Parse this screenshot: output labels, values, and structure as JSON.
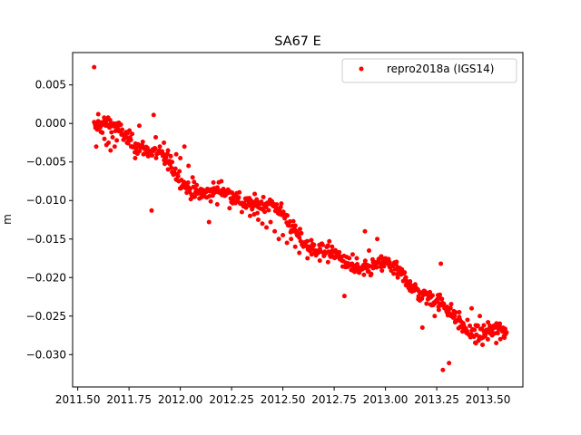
{
  "chart_data": {
    "type": "scatter",
    "title": "SA67 E",
    "xlabel": "",
    "ylabel": "m",
    "xlim": [
      2011.475,
      2013.67
    ],
    "ylim": [
      -0.0342,
      0.0092
    ],
    "xticks": [
      2011.5,
      2011.75,
      2012.0,
      2012.25,
      2012.5,
      2012.75,
      2013.0,
      2013.25,
      2013.5
    ],
    "xtick_labels": [
      "2011.50",
      "2011.75",
      "2012.00",
      "2012.25",
      "2012.50",
      "2012.75",
      "2013.00",
      "2013.25",
      "2013.50"
    ],
    "yticks": [
      0.005,
      0.0,
      -0.005,
      -0.01,
      -0.015,
      -0.02,
      -0.025,
      -0.03
    ],
    "ytick_labels": [
      "0.005",
      "0.000",
      "−0.005",
      "−0.010",
      "−0.015",
      "−0.020",
      "−0.025",
      "−0.030"
    ],
    "grid": false,
    "legend": {
      "position": "upper-right",
      "entries": [
        "repro2018a (IGS14)"
      ]
    },
    "series": [
      {
        "name": "repro2018a (IGS14)",
        "color": "#ff0000",
        "points": [
          [
            2011.58,
            0.0073
          ],
          [
            2011.585,
            -0.0002
          ],
          [
            2011.59,
            -0.003
          ],
          [
            2011.595,
            -0.0008
          ],
          [
            2011.6,
            0.0012
          ],
          [
            2011.61,
            -0.0005
          ],
          [
            2011.62,
            -0.0012
          ],
          [
            2011.63,
            -0.002
          ],
          [
            2011.64,
            -0.0028
          ],
          [
            2011.65,
            -0.0025
          ],
          [
            2011.66,
            -0.0035
          ],
          [
            2011.67,
            -0.0018
          ],
          [
            2011.68,
            -0.003
          ],
          [
            2011.69,
            -0.0022
          ],
          [
            2011.7,
            -0.001
          ],
          [
            2011.72,
            -0.0015
          ],
          [
            2011.74,
            -0.0025
          ],
          [
            2011.76,
            -0.003
          ],
          [
            2011.78,
            -0.0045
          ],
          [
            2011.8,
            -0.0003
          ],
          [
            2011.82,
            -0.0032
          ],
          [
            2011.84,
            -0.004
          ],
          [
            2011.86,
            -0.0113
          ],
          [
            2011.87,
            0.0011
          ],
          [
            2011.88,
            -0.0018
          ],
          [
            2011.9,
            -0.003
          ],
          [
            2011.92,
            -0.0025
          ],
          [
            2011.94,
            -0.0035
          ],
          [
            2011.96,
            -0.005
          ],
          [
            2011.98,
            -0.004
          ],
          [
            2012.0,
            -0.0045
          ],
          [
            2012.02,
            -0.003
          ],
          [
            2012.04,
            -0.0055
          ],
          [
            2012.06,
            -0.007
          ],
          [
            2012.08,
            -0.008
          ],
          [
            2012.1,
            -0.0085
          ],
          [
            2012.12,
            -0.0095
          ],
          [
            2012.14,
            -0.0128
          ],
          [
            2012.16,
            -0.009
          ],
          [
            2012.18,
            -0.0105
          ],
          [
            2012.2,
            -0.0075
          ],
          [
            2012.22,
            -0.0088
          ],
          [
            2012.24,
            -0.011
          ],
          [
            2012.26,
            -0.0095
          ],
          [
            2012.28,
            -0.01
          ],
          [
            2012.3,
            -0.0115
          ],
          [
            2012.32,
            -0.0108
          ],
          [
            2012.34,
            -0.012
          ],
          [
            2012.36,
            -0.0118
          ],
          [
            2012.38,
            -0.0125
          ],
          [
            2012.4,
            -0.013
          ],
          [
            2012.42,
            -0.0135
          ],
          [
            2012.44,
            -0.0128
          ],
          [
            2012.46,
            -0.014
          ],
          [
            2012.48,
            -0.015
          ],
          [
            2012.5,
            -0.0145
          ],
          [
            2012.52,
            -0.0155
          ],
          [
            2012.54,
            -0.015
          ],
          [
            2012.56,
            -0.016
          ],
          [
            2012.58,
            -0.0168
          ],
          [
            2012.6,
            -0.016
          ],
          [
            2012.62,
            -0.0175
          ],
          [
            2012.64,
            -0.017
          ],
          [
            2012.66,
            -0.0165
          ],
          [
            2012.68,
            -0.0178
          ],
          [
            2012.7,
            -0.0172
          ],
          [
            2012.72,
            -0.018
          ],
          [
            2012.74,
            -0.016
          ],
          [
            2012.76,
            -0.0168
          ],
          [
            2012.78,
            -0.0175
          ],
          [
            2012.8,
            -0.0224
          ],
          [
            2012.82,
            -0.0185
          ],
          [
            2012.84,
            -0.017
          ],
          [
            2012.86,
            -0.0175
          ],
          [
            2012.88,
            -0.019
          ],
          [
            2012.9,
            -0.014
          ],
          [
            2012.92,
            -0.0165
          ],
          [
            2012.94,
            -0.018
          ],
          [
            2012.96,
            -0.015
          ],
          [
            2012.98,
            -0.0185
          ],
          [
            2013.0,
            -0.0175
          ],
          [
            2013.02,
            -0.018
          ],
          [
            2013.04,
            -0.0195
          ],
          [
            2013.06,
            -0.02
          ],
          [
            2013.08,
            -0.019
          ],
          [
            2013.1,
            -0.021
          ],
          [
            2013.12,
            -0.0205
          ],
          [
            2013.14,
            -0.0215
          ],
          [
            2013.16,
            -0.0228
          ],
          [
            2013.18,
            -0.0265
          ],
          [
            2013.2,
            -0.022
          ],
          [
            2013.22,
            -0.0235
          ],
          [
            2013.24,
            -0.025
          ],
          [
            2013.26,
            -0.0242
          ],
          [
            2013.27,
            -0.0182
          ],
          [
            2013.28,
            -0.032
          ],
          [
            2013.3,
            -0.0238
          ],
          [
            2013.31,
            -0.0311
          ],
          [
            2013.32,
            -0.025
          ],
          [
            2013.34,
            -0.0258
          ],
          [
            2013.36,
            -0.0245
          ],
          [
            2013.38,
            -0.0265
          ],
          [
            2013.4,
            -0.0255
          ],
          [
            2013.42,
            -0.024
          ],
          [
            2013.44,
            -0.0262
          ],
          [
            2013.46,
            -0.025
          ],
          [
            2013.48,
            -0.027
          ],
          [
            2013.5,
            -0.0258
          ],
          [
            2013.52,
            -0.0275
          ],
          [
            2013.54,
            -0.0285
          ],
          [
            2013.56,
            -0.028
          ],
          [
            2013.58,
            -0.0278
          ]
        ],
        "trend": {
          "start": [
            2011.58,
            -0.0005
          ],
          "end": [
            2013.59,
            -0.0278
          ]
        },
        "scatter_spread": 0.0016
      }
    ]
  }
}
